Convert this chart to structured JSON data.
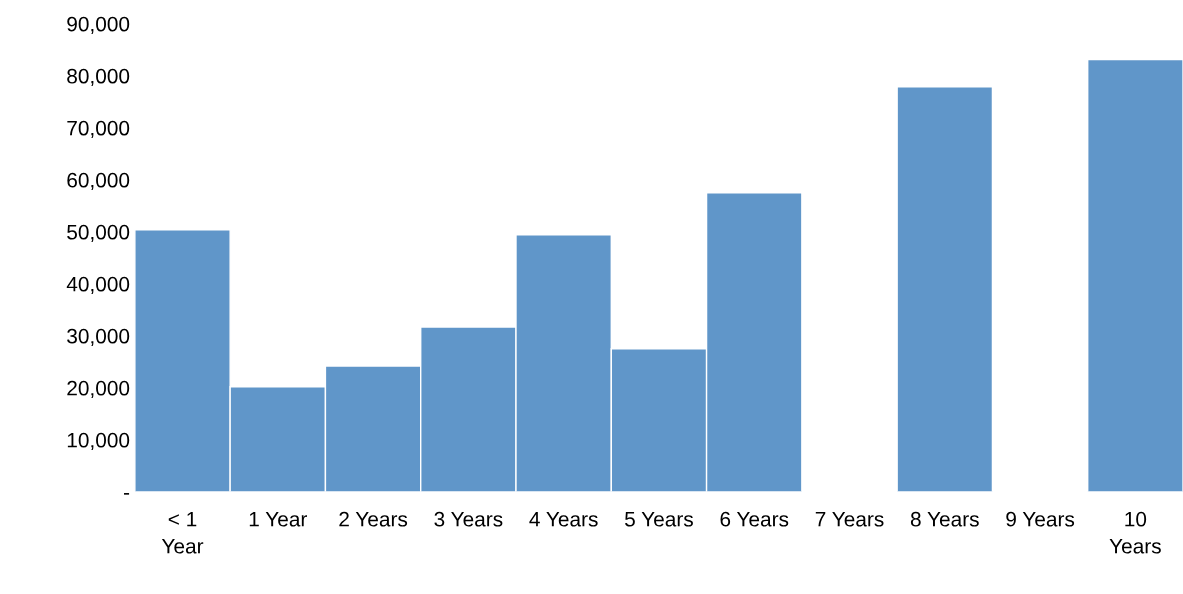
{
  "chart_data": {
    "type": "bar",
    "categories": [
      "< 1\nYear",
      "1 Year",
      "2 Years",
      "3 Years",
      "4 Years",
      "5 Years",
      "6 Years",
      "7 Years",
      "8 Years",
      "9 Years",
      "10\nYears"
    ],
    "values": [
      50400,
      20200,
      24200,
      31700,
      49400,
      27500,
      57500,
      null,
      77900,
      null,
      83100
    ],
    "color": "#6096c9",
    "ylim": [
      0,
      90000
    ],
    "yticks": [
      {
        "value": 0,
        "label": "-"
      },
      {
        "value": 10000,
        "label": "10,000"
      },
      {
        "value": 20000,
        "label": "20,000"
      },
      {
        "value": 30000,
        "label": "30,000"
      },
      {
        "value": 40000,
        "label": "40,000"
      },
      {
        "value": 50000,
        "label": "50,000"
      },
      {
        "value": 60000,
        "label": "60,000"
      },
      {
        "value": 70000,
        "label": "70,000"
      },
      {
        "value": 80000,
        "label": "80,000"
      },
      {
        "value": 90000,
        "label": "90,000"
      }
    ],
    "grid": false,
    "legend": false
  }
}
